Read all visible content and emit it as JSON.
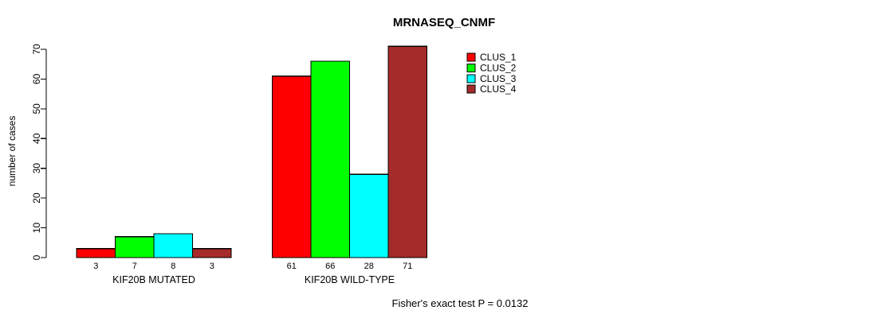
{
  "chart_data": {
    "type": "bar",
    "title": "MRNASEQ_CNMF",
    "ylabel": "number of cases",
    "xlabel": "",
    "ylim": [
      0,
      70
    ],
    "yticks": [
      0,
      10,
      20,
      30,
      40,
      50,
      60,
      70
    ],
    "grid": false,
    "categories": [
      "KIF20B MUTATED",
      "KIF20B WILD-TYPE"
    ],
    "series": [
      {
        "name": "CLUS_1",
        "color": "#FF0000",
        "values": [
          3,
          61
        ]
      },
      {
        "name": "CLUS_2",
        "color": "#00FF00",
        "values": [
          7,
          66
        ]
      },
      {
        "name": "CLUS_3",
        "color": "#00FFFF",
        "values": [
          8,
          28
        ]
      },
      {
        "name": "CLUS_4",
        "color": "#A52A2A",
        "values": [
          3,
          71
        ]
      }
    ],
    "value_labels": [
      [
        3,
        7,
        8,
        3
      ],
      [
        61,
        66,
        28,
        71
      ]
    ],
    "legend": {
      "position": "top-right",
      "entries": [
        "CLUS_1",
        "CLUS_2",
        "CLUS_3",
        "CLUS_4"
      ]
    },
    "caption": "Fisher's exact test P = 0.0132",
    "bar_border_color": "#000000",
    "axis_color": "#000000",
    "background_color": "#FFFFFF"
  }
}
